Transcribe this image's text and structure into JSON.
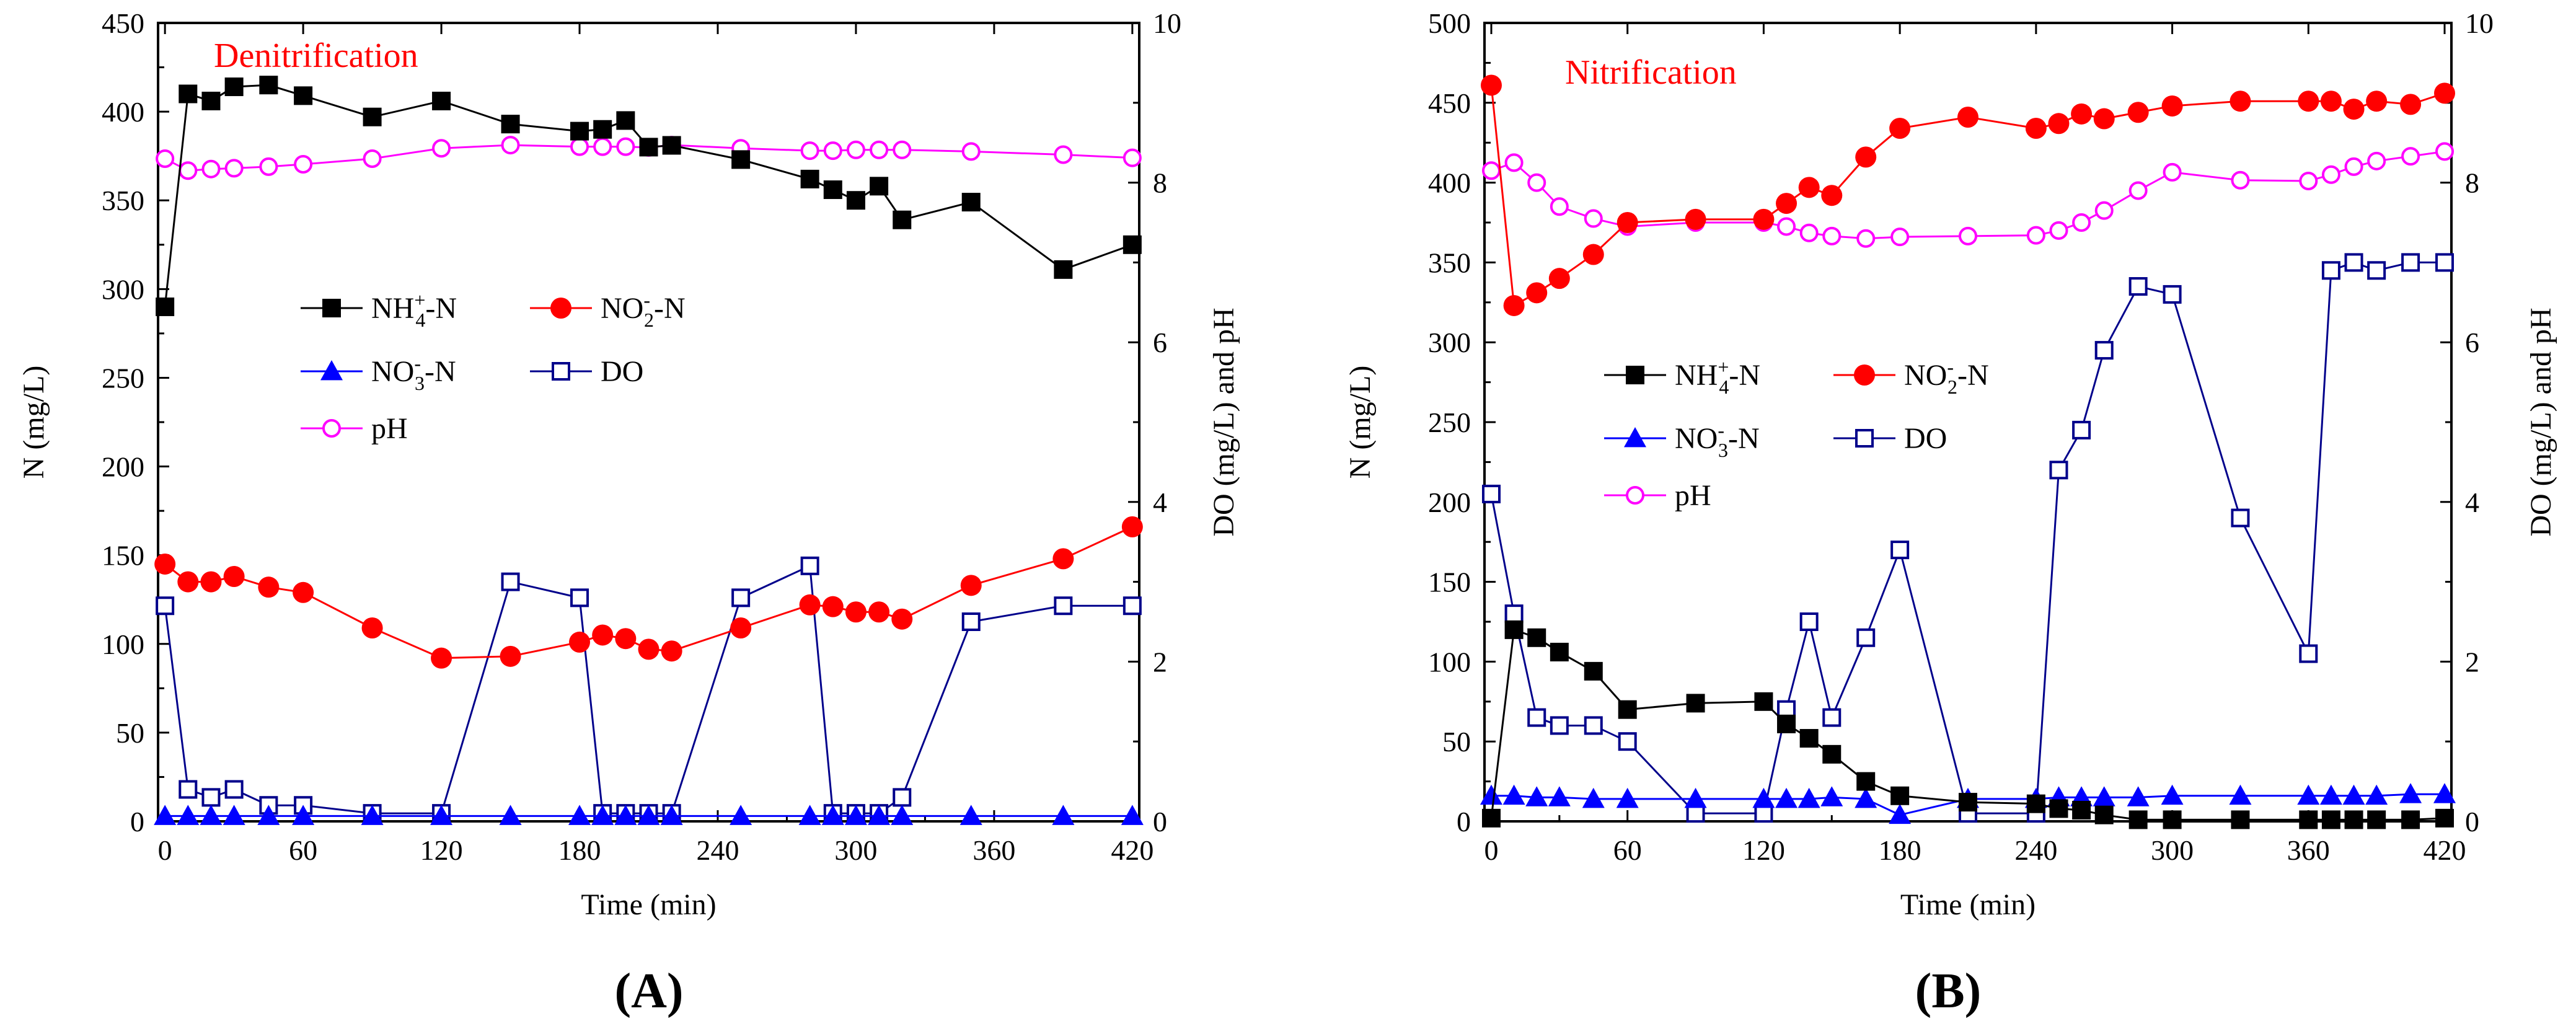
{
  "figure": {
    "colors": {
      "nh4": "#000000",
      "no2": "#ff0000",
      "no3": "#0000ff",
      "do": "#00008b",
      "ph": "#ff00ff",
      "title": "#ff0000",
      "axis": "#000000"
    }
  },
  "chart_data": [
    {
      "type": "line",
      "panel_label": "(A)",
      "title": "Denitrification",
      "xlabel": "Time (min)",
      "ylabel": "N (mg/L)",
      "y2label": "DO (mg/L) and pH",
      "xlim": [
        -3,
        423
      ],
      "ylim": [
        0,
        450
      ],
      "y2lim": [
        0,
        10
      ],
      "xticks": [
        0,
        60,
        120,
        180,
        240,
        300,
        360,
        420
      ],
      "yticks": [
        0,
        50,
        100,
        150,
        200,
        250,
        300,
        350,
        400,
        450
      ],
      "y2ticks": [
        0,
        2,
        4,
        6,
        8,
        10
      ],
      "legend": {
        "placement": "center-left",
        "labels": {
          "nh4_main": "NH",
          "nh4_sup": "+",
          "nh4_sub": "4",
          "no2_main": "NO",
          "no2_sup": "-",
          "no2_sub": "2",
          "no3_main": "NO",
          "no3_sup": "-",
          "no3_sub": "3",
          "n_suffix": "-N",
          "do": "DO",
          "ph": "pH"
        }
      },
      "series": [
        {
          "key": "nh4",
          "name": "NH4+-N",
          "axis": "left",
          "marker": "square-filled",
          "x": [
            0,
            10,
            20,
            30,
            45,
            60,
            90,
            120,
            150,
            180,
            190,
            200,
            210,
            220,
            250,
            280,
            290,
            300,
            310,
            320,
            350,
            390,
            420
          ],
          "y": [
            290,
            410,
            406,
            414,
            415,
            409,
            397,
            406,
            393,
            389,
            390,
            395,
            380,
            381,
            373,
            362,
            356,
            350,
            358,
            339,
            349,
            311,
            325
          ]
        },
        {
          "key": "no2",
          "name": "NO2--N",
          "axis": "left",
          "marker": "circle-filled",
          "x": [
            0,
            10,
            20,
            30,
            45,
            60,
            90,
            120,
            150,
            180,
            190,
            200,
            210,
            220,
            250,
            280,
            290,
            300,
            310,
            320,
            350,
            390,
            420
          ],
          "y": [
            145,
            135,
            135,
            138,
            132,
            129,
            109,
            92,
            93,
            101,
            105,
            103,
            97,
            96,
            109,
            122,
            121,
            118,
            118,
            114,
            133,
            148,
            166
          ]
        },
        {
          "key": "no3",
          "name": "NO3--N",
          "axis": "left",
          "marker": "triangle-filled",
          "x": [
            0,
            10,
            20,
            30,
            45,
            60,
            90,
            120,
            150,
            180,
            190,
            200,
            210,
            220,
            250,
            280,
            290,
            300,
            310,
            320,
            350,
            390,
            420
          ],
          "y": [
            3,
            3,
            3,
            3,
            3,
            3,
            3,
            3,
            3,
            3,
            3,
            3,
            3,
            3,
            3,
            3,
            3,
            3,
            3,
            3,
            3,
            3,
            3
          ]
        },
        {
          "key": "do",
          "name": "DO",
          "axis": "right",
          "marker": "square-open",
          "x": [
            0,
            10,
            20,
            30,
            45,
            60,
            90,
            120,
            150,
            180,
            190,
            200,
            210,
            220,
            250,
            280,
            290,
            300,
            310,
            320,
            350,
            390,
            420
          ],
          "y": [
            2.7,
            0.4,
            0.3,
            0.4,
            0.2,
            0.2,
            0.1,
            0.1,
            3.0,
            2.8,
            0.1,
            0.1,
            0.1,
            0.1,
            2.8,
            3.2,
            0.1,
            0.1,
            0.1,
            0.3,
            2.5,
            2.7,
            2.7
          ]
        },
        {
          "key": "ph",
          "name": "pH",
          "axis": "right",
          "marker": "circle-open",
          "x": [
            0,
            10,
            20,
            30,
            45,
            60,
            90,
            120,
            150,
            180,
            190,
            200,
            210,
            220,
            250,
            280,
            290,
            300,
            310,
            320,
            350,
            390,
            420
          ],
          "y": [
            8.3,
            8.15,
            8.17,
            8.18,
            8.2,
            8.23,
            8.3,
            8.43,
            8.47,
            8.45,
            8.45,
            8.45,
            8.44,
            8.47,
            8.43,
            8.4,
            8.4,
            8.41,
            8.41,
            8.41,
            8.39,
            8.35,
            8.31
          ]
        }
      ]
    },
    {
      "type": "line",
      "panel_label": "(B)",
      "title": "Nitrification",
      "xlabel": "Time (min)",
      "ylabel": "N (mg/L)",
      "y2label": "DO (mg/L) and pH",
      "xlim": [
        -3,
        423
      ],
      "ylim": [
        0,
        500
      ],
      "y2lim": [
        0,
        10
      ],
      "xticks": [
        0,
        60,
        120,
        180,
        240,
        300,
        360,
        420
      ],
      "yticks": [
        0,
        50,
        100,
        150,
        200,
        250,
        300,
        350,
        400,
        450,
        500
      ],
      "y2ticks": [
        0,
        2,
        4,
        6,
        8,
        10
      ],
      "legend": {
        "placement": "center-left",
        "labels": {
          "nh4_main": "NH",
          "nh4_sup": "+",
          "nh4_sub": "4",
          "no2_main": "NO",
          "no2_sup": "-",
          "no2_sub": "2",
          "no3_main": "NO",
          "no3_sup": "-",
          "no3_sub": "3",
          "n_suffix": "-N",
          "do": "DO",
          "ph": "pH"
        }
      },
      "series": [
        {
          "key": "nh4",
          "name": "NH4+-N",
          "axis": "left",
          "marker": "square-filled",
          "x": [
            0,
            10,
            20,
            30,
            45,
            60,
            90,
            120,
            130,
            140,
            150,
            165,
            180,
            210,
            240,
            250,
            260,
            270,
            285,
            300,
            330,
            360,
            370,
            380,
            390,
            405,
            420
          ],
          "y": [
            2,
            120,
            115,
            106,
            94,
            70,
            74,
            75,
            61,
            52,
            42,
            25,
            16,
            12,
            11,
            8,
            7,
            4,
            1,
            1,
            1,
            1,
            1,
            1,
            1,
            1,
            2
          ]
        },
        {
          "key": "no2",
          "name": "NO2--N",
          "axis": "left",
          "marker": "circle-filled",
          "x": [
            0,
            10,
            20,
            30,
            45,
            60,
            90,
            120,
            130,
            140,
            150,
            165,
            180,
            210,
            240,
            250,
            260,
            270,
            285,
            300,
            330,
            360,
            370,
            380,
            390,
            405,
            420
          ],
          "y": [
            461,
            323,
            331,
            340,
            355,
            375,
            377,
            377,
            387,
            397,
            392,
            416,
            434,
            441,
            434,
            437,
            443,
            440,
            444,
            448,
            451,
            451,
            451,
            446,
            451,
            449,
            456
          ]
        },
        {
          "key": "no3",
          "name": "NO3--N",
          "axis": "left",
          "marker": "triangle-filled",
          "x": [
            0,
            10,
            20,
            30,
            45,
            60,
            90,
            120,
            130,
            140,
            150,
            165,
            180,
            210,
            240,
            250,
            260,
            270,
            285,
            300,
            330,
            360,
            370,
            380,
            390,
            405,
            420
          ],
          "y": [
            16,
            16,
            15,
            15,
            14,
            14,
            14,
            14,
            14,
            14,
            15,
            14,
            4,
            14,
            14,
            15,
            15,
            15,
            15,
            16,
            16,
            16,
            16,
            16,
            16,
            17,
            17
          ]
        },
        {
          "key": "do",
          "name": "DO",
          "axis": "right",
          "marker": "square-open",
          "x": [
            0,
            10,
            20,
            30,
            45,
            60,
            90,
            120,
            130,
            140,
            150,
            165,
            180,
            210,
            240,
            250,
            260,
            270,
            285,
            300,
            330,
            360,
            370,
            380,
            390,
            405,
            420
          ],
          "y": [
            4.1,
            2.6,
            1.3,
            1.2,
            1.2,
            1.0,
            0.1,
            0.1,
            1.4,
            2.5,
            1.3,
            2.3,
            3.4,
            0.1,
            0.1,
            4.4,
            4.9,
            5.9,
            6.7,
            6.6,
            3.8,
            2.1,
            6.9,
            7.0,
            6.9,
            7.0,
            7.0
          ]
        },
        {
          "key": "ph",
          "name": "pH",
          "axis": "right",
          "marker": "circle-open",
          "x": [
            0,
            10,
            20,
            30,
            45,
            60,
            90,
            120,
            130,
            140,
            150,
            165,
            180,
            210,
            240,
            250,
            260,
            270,
            285,
            300,
            330,
            360,
            370,
            380,
            390,
            405,
            420
          ],
          "y": [
            8.15,
            8.25,
            8.0,
            7.7,
            7.55,
            7.45,
            7.5,
            7.5,
            7.45,
            7.37,
            7.33,
            7.3,
            7.32,
            7.33,
            7.34,
            7.4,
            7.5,
            7.65,
            7.9,
            8.13,
            8.03,
            8.02,
            8.1,
            8.2,
            8.27,
            8.33,
            8.39
          ]
        }
      ]
    }
  ]
}
